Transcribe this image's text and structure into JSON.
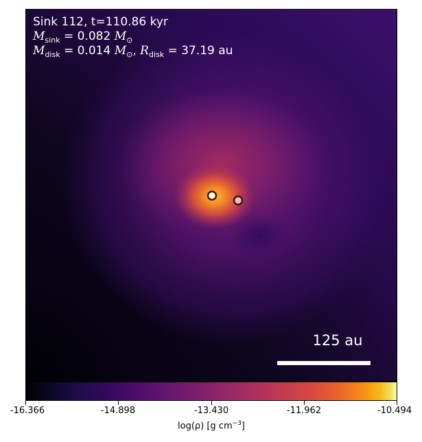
{
  "annotations": {
    "title_line": "Sink 112, t=110.86 kyr",
    "msink_symbol": "M",
    "msink_sub": "sink",
    "msink_value": "= 0.082",
    "mdisk_symbol": "M",
    "mdisk_sub": "disk",
    "mdisk_value": "= 0.014",
    "solar_unit": "M",
    "solar_sub": "⊙",
    "rdisk_symbol": "R",
    "rdisk_sub": "disk",
    "rdisk_value": "= 37.19 au"
  },
  "scale_bar": {
    "label": "125 au"
  },
  "colorbar": {
    "label_prefix": "log(ρ) [g cm",
    "label_exp": "−3",
    "label_suffix": "]",
    "ticks": [
      "-16.366",
      "-14.898",
      "-13.430",
      "-11.962",
      "-10.494"
    ],
    "colormap": "inferno"
  },
  "sinks": {
    "count": 2,
    "marker_colors": [
      "#fffbe0",
      "#f0b8c8"
    ],
    "marker_edge_color": "#3a1a10"
  },
  "colors": {
    "background_dark": "#0a0418",
    "envelope": "#3a0d63",
    "disk_core": "#f07a28"
  }
}
